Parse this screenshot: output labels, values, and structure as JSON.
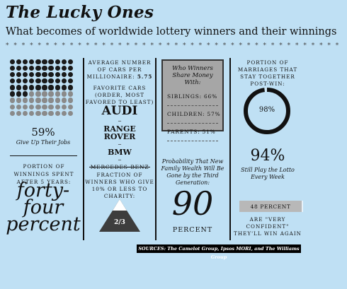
{
  "header": {
    "title": "The Lucky Ones",
    "subtitle": "What becomes of worldwide lottery winners and their winnings",
    "divider": "* * * * * * * * * * * * * * * * * * * * * * * * * * * * * * * * * * * * * * * * * * * * * * * * * * * * * * * * * * * * * *"
  },
  "col1": {
    "jobs_stat": "59%",
    "jobs_label": "Give Up Their Jobs",
    "dots_filled_fraction": 0.59,
    "spent_label": "Portion of winnings spent after 5 years:",
    "spent_value_line1": "forty-",
    "spent_value_line2": "four",
    "spent_value_line3": "percent",
    "colors": {
      "dot_dark": "#1a1a1a",
      "dot_light": "#8a8a8a"
    }
  },
  "col2": {
    "cars_label": "Average number of cars per millionaire:",
    "cars_value": "5.75",
    "fav_label": "Favorite cars (order, most favored to least)",
    "cars": [
      "AUDI",
      "RANGE",
      "ROVER",
      "BMW",
      "MERCEDES-BENZ"
    ],
    "charity_label": "Fraction of winners who give 10% or less to charity:",
    "charity_value": "2/3",
    "charity_fraction": 0.6667
  },
  "col3": {
    "share_title": "Who Winners Share Money With:",
    "share_rows": [
      {
        "label": "SIBLINGS:",
        "value": "66%"
      },
      {
        "label": "CHILDREN:",
        "value": "57%"
      },
      {
        "label": "PARENTS:",
        "value": "51%"
      }
    ],
    "wealth_label": "Probability That New Family Wealth Will Be Gone by the Third Generation:",
    "wealth_value": "90",
    "wealth_unit": "PERCENT"
  },
  "col4": {
    "marriage_label": "Portion of marriages that stay together post-win:",
    "marriage_value": "98%",
    "marriage_fraction": 0.98,
    "lotto_stat": "94%",
    "lotto_label_1": "Still Play the Lotto",
    "lotto_label_2": "Every Week",
    "confident_bar_label": "48 PERCENT",
    "confident_fraction": 0.48,
    "confident_text_1": "ARE \"VERY",
    "confident_text_2": "CONFIDENT\"",
    "confident_text_3": "THEY'LL WIN AGAIN"
  },
  "footer": {
    "sources": "SOURCES: The Camelot Group, Ipsos MORI, and The Williams Group"
  }
}
